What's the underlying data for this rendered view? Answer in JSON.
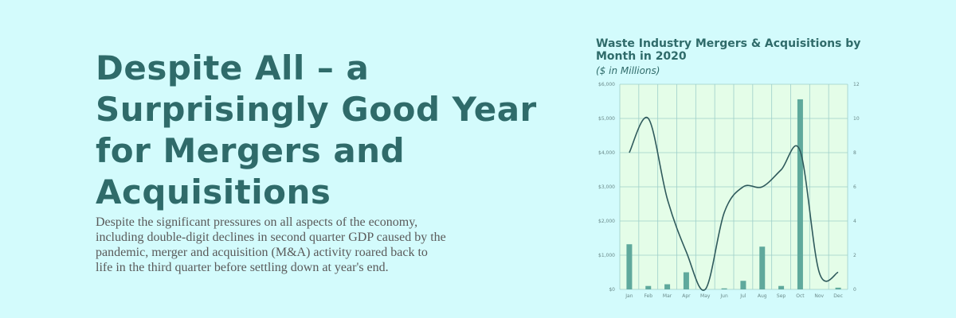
{
  "article": {
    "headline": "Despite All – a Surprisingly Good Year for Mergers and Acquisitions",
    "body": "Despite the significant pressures on all aspects of the economy, including double-digit declines in second quarter GDP caused by the pandemic, merger and acquisition (M&A) activity roared back to life in the third quarter before settling down at year's end."
  },
  "colors": {
    "background": "#d3fbfc",
    "plot_background": "#e4fde8",
    "grid": "#9ecfc9",
    "bar": "#5fa99c",
    "line": "#2f5a5c",
    "title": "#2f6b6a"
  },
  "chart_data": {
    "type": "bar",
    "title": "Waste Industry Mergers & Acquisitions by Month in 2020",
    "subtitle": "($ in Millions)",
    "categories": [
      "Jan",
      "Feb",
      "Mar",
      "Apr",
      "May",
      "Jun",
      "Jul",
      "Aug",
      "Sep",
      "Oct",
      "Nov",
      "Dec"
    ],
    "series": [
      {
        "type": "bar",
        "axis": "left",
        "values": [
          1320,
          100,
          150,
          500,
          0,
          30,
          250,
          1250,
          100,
          5560,
          0,
          50
        ]
      },
      {
        "type": "line",
        "axis": "right",
        "values": [
          8,
          10,
          5.3,
          2.2,
          0,
          4.5,
          6,
          6,
          7,
          8.1,
          1,
          1
        ]
      }
    ],
    "ylim": [
      0,
      6000
    ],
    "y_ticks": [
      "$0",
      "$1,000",
      "$2,000",
      "$3,000",
      "$4,000",
      "$5,000",
      "$6,000"
    ],
    "y2lim": [
      0,
      12
    ],
    "y2_ticks": [
      "0",
      "2",
      "4",
      "6",
      "8",
      "10",
      "12"
    ],
    "grid": true
  }
}
